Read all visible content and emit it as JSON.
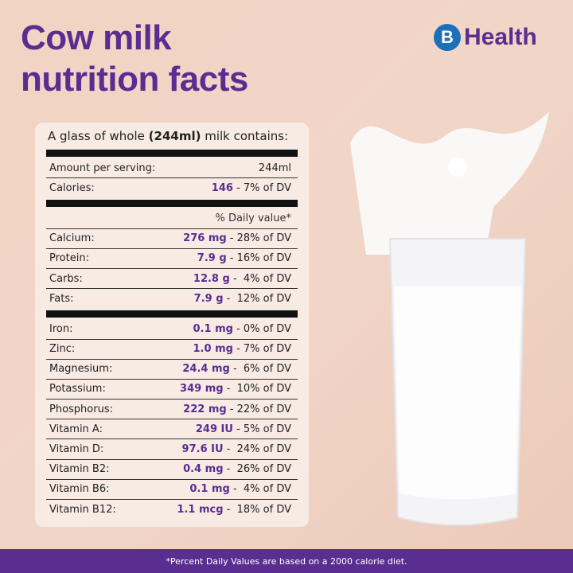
{
  "title": {
    "line1": "Cow milk",
    "line2": "nutrition facts"
  },
  "logo": {
    "mark": "B",
    "text": "Health"
  },
  "card": {
    "intro_pre": "A glass of whole ",
    "intro_bold": "(244ml)",
    "intro_post": " milk contains:",
    "serving": {
      "label": "Amount per serving:",
      "value": "244ml"
    },
    "calories": {
      "label": "Calories:",
      "amount": "146",
      "dv": " - 7% of DV"
    },
    "dv_header": "% Daily value*",
    "macros": [
      {
        "label": "Calcium:",
        "amount": "276 mg",
        "dv": " - 28% of DV"
      },
      {
        "label": "Protein:",
        "amount": "7.9 g",
        "dv": " - 16% of DV"
      },
      {
        "label": "Carbs:",
        "amount": "12.8 g",
        "dv": " -  4% of DV"
      },
      {
        "label": "Fats:",
        "amount": "7.9 g",
        "dv": " -  12% of DV"
      }
    ],
    "micros": [
      {
        "label": "Iron:",
        "amount": "0.1 mg",
        "dv": " - 0% of DV"
      },
      {
        "label": "Zinc:",
        "amount": "1.0 mg",
        "dv": " - 7% of DV"
      },
      {
        "label": "Magnesium:",
        "amount": "24.4 mg",
        "dv": " -  6% of DV"
      },
      {
        "label": "Potassium:",
        "amount": "349 mg",
        "dv": " -  10% of DV"
      },
      {
        "label": "Phosphorus:",
        "amount": "222 mg",
        "dv": " - 22% of DV"
      },
      {
        "label": "Vitamin A:",
        "amount": "249 IU",
        "dv": " - 5% of DV"
      },
      {
        "label": "Vitamin D:",
        "amount": "97.6 IU",
        "dv": " -  24% of DV"
      },
      {
        "label": "Vitamin B2:",
        "amount": "0.4 mg",
        "dv": " -  26% of DV"
      },
      {
        "label": "Vitamin B6:",
        "amount": "0.1 mg",
        "dv": " -  4% of DV"
      },
      {
        "label": "Vitamin B12:",
        "amount": "1.1 mcg",
        "dv": " -  18% of DV"
      }
    ]
  },
  "footer": "*Percent Daily Values are based on a 2000 calorie diet.",
  "colors": {
    "accent": "#5a2d91",
    "logo_blue": "#1d6fb8"
  }
}
